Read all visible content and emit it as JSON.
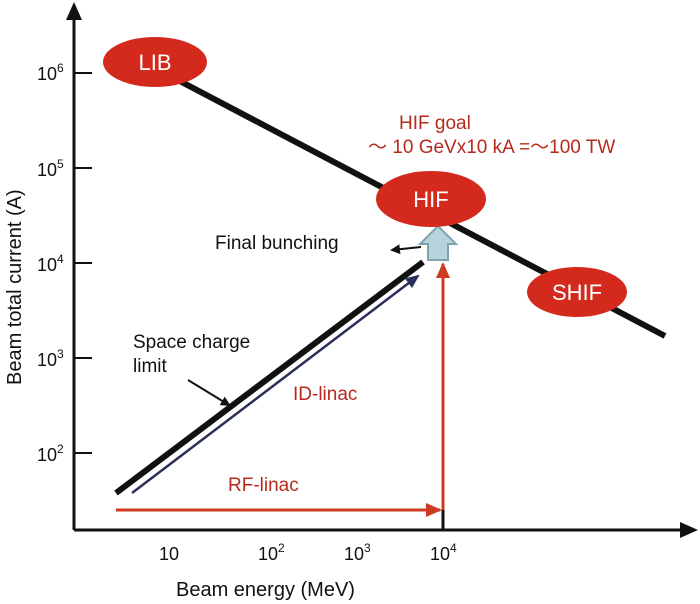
{
  "axes": {
    "x_title": "Beam energy  (MeV)",
    "y_title": "Beam total current  (A)",
    "x_ticks": [
      {
        "base": "10",
        "exp": ""
      },
      {
        "base": "10",
        "exp": "2"
      },
      {
        "base": "10",
        "exp": "3"
      },
      {
        "base": "10",
        "exp": "4"
      }
    ],
    "y_ticks": [
      {
        "base": "10",
        "exp": "6"
      },
      {
        "base": "10",
        "exp": "5"
      },
      {
        "base": "10",
        "exp": "4"
      },
      {
        "base": "10",
        "exp": "3"
      },
      {
        "base": "10",
        "exp": "2"
      }
    ]
  },
  "ovals": {
    "lib": "LIB",
    "hif": "HIF",
    "shif": "SHIF"
  },
  "annotations": {
    "hif_goal_title": "HIF goal",
    "hif_goal_detail": "～ 10 GeVx10 kA =～100 TW",
    "final_bunching": "Final bunching",
    "space_charge_line1": "Space charge",
    "space_charge_line2": "limit",
    "id_linac": "ID-linac",
    "rf_linac": "RF-linac"
  },
  "colors": {
    "oval_red": "#d42a1e",
    "accent_red": "#cf3a22",
    "text_red": "#b52a1c",
    "navy_line": "#2a2f5c",
    "arrow_fill": "#b9d3dc",
    "arrow_stroke": "#7fa2b0"
  }
}
